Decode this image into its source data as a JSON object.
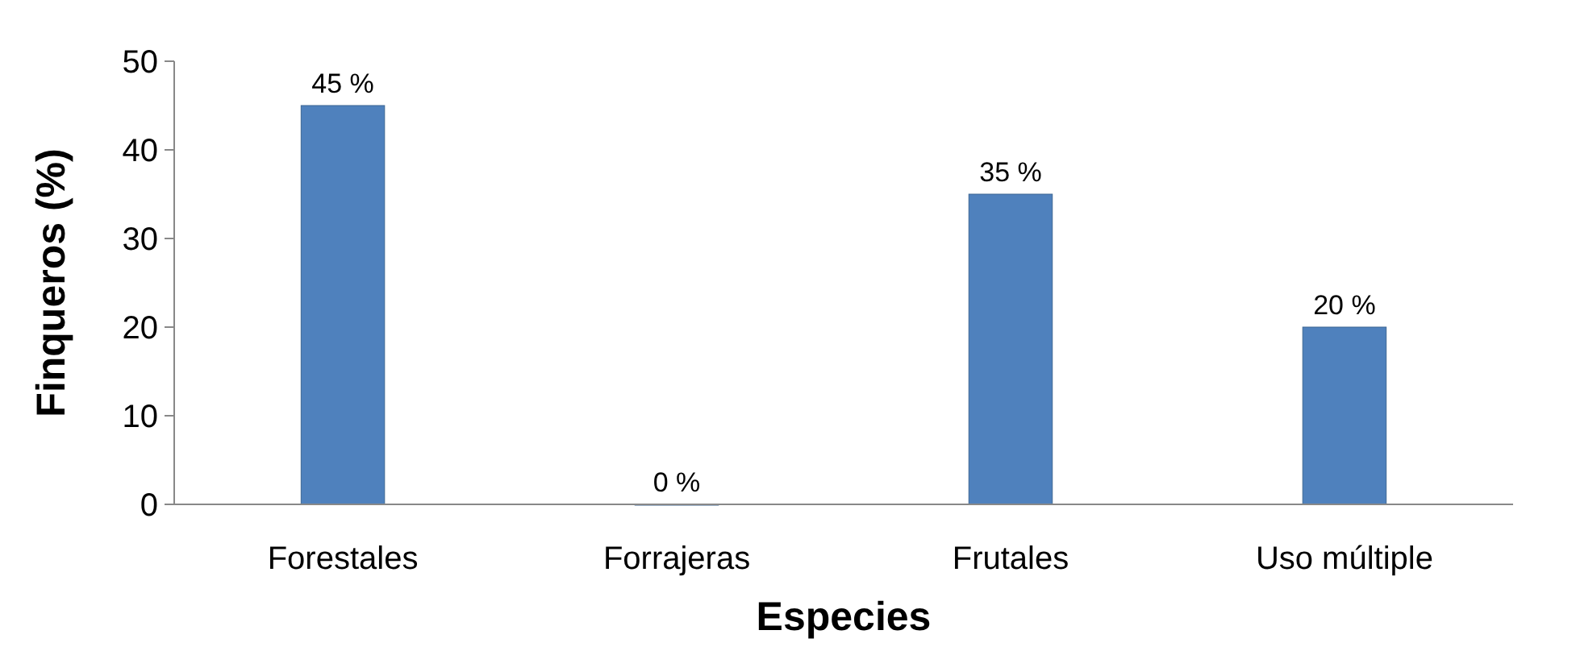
{
  "chart_data": {
    "type": "bar",
    "xlabel": "Especies",
    "ylabel": "Finqueros (%)",
    "categories": [
      "Forestales",
      "Forrajeras",
      "Frutales",
      "Uso múltiple"
    ],
    "values": [
      45,
      0,
      35,
      20
    ],
    "value_labels": [
      "45 %",
      "0 %",
      "35 %",
      "20 %"
    ],
    "color": "#4f81bd",
    "ylim": [
      0,
      50
    ],
    "yticks": [
      0,
      10,
      20,
      30,
      40,
      50
    ],
    "grid": false
  }
}
